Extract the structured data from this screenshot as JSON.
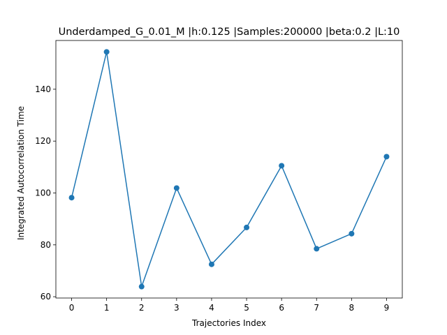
{
  "chart_data": {
    "type": "line",
    "title": "Underdamped_G_0.01_M |h:0.125 |Samples:200000 |beta:0.2 |L:10",
    "xlabel": "Trajectories Index",
    "ylabel": "Integrated Autocorrelation Time",
    "x": [
      0,
      1,
      2,
      3,
      4,
      5,
      6,
      7,
      8,
      9
    ],
    "xticks": [
      "0",
      "1",
      "2",
      "3",
      "4",
      "5",
      "6",
      "7",
      "8",
      "9"
    ],
    "yticks": [
      "60",
      "80",
      "100",
      "120",
      "140"
    ],
    "xlim": [
      -0.45,
      9.45
    ],
    "ylim": [
      59.5,
      158.8
    ],
    "grid": false,
    "series": [
      {
        "values": [
          98.2,
          154.4,
          63.9,
          101.9,
          72.5,
          86.7,
          110.5,
          78.5,
          84.3,
          114.0
        ],
        "color": "#1f77b4",
        "marker": "circle"
      }
    ]
  }
}
